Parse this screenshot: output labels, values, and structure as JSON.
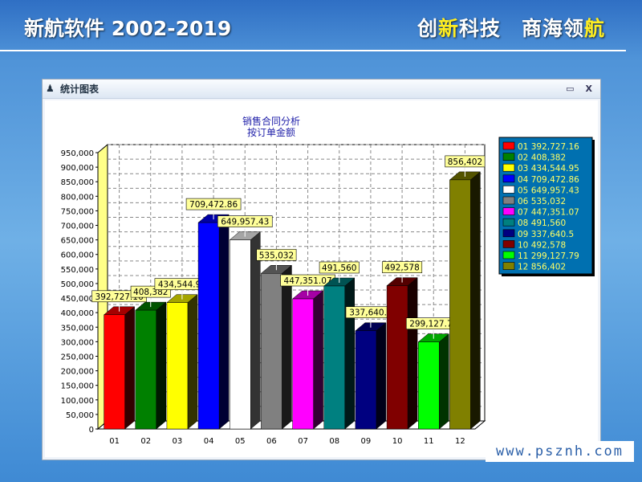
{
  "header": {
    "title": "新航软件 2002-2019",
    "slogan_parts": [
      "创",
      "新",
      "科技　商海领",
      "航"
    ]
  },
  "window": {
    "title": "统计图表",
    "minimize_label": "▭",
    "close_label": "X"
  },
  "footer": {
    "url": "www.psznh.com"
  },
  "colors": {
    "label_bg": "#ffff99",
    "legend_bg": "#0070b0",
    "legend_text": "#ffff66"
  },
  "chart_data": {
    "type": "bar",
    "style": "3d",
    "title": "销售合同分析",
    "subtitle": "按订单金额",
    "categories": [
      "01",
      "02",
      "03",
      "04",
      "05",
      "06",
      "07",
      "08",
      "09",
      "10",
      "11",
      "12"
    ],
    "values": [
      392727.16,
      408382,
      434544.95,
      709472.86,
      649957.43,
      535032,
      447351.07,
      491560,
      337640.5,
      492578,
      299127.79,
      856402
    ],
    "labels": [
      "392,727.16",
      "408,382",
      "434,544.95",
      "709,472.86",
      "649,957.43",
      "535,032",
      "447,351.07",
      "491,560",
      "337,640.5",
      "492,578",
      "299,127.79",
      "856,402"
    ],
    "colors": [
      "#ff0000",
      "#008000",
      "#ffff00",
      "#0000ff",
      "#ffffff",
      "#808080",
      "#ff00ff",
      "#008080",
      "#000080",
      "#800000",
      "#00ff00",
      "#808000"
    ],
    "legend": [
      "01 392,727.16",
      "02 408,382",
      "03 434,544.95",
      "04 709,472.86",
      "05 649,957.43",
      "06 535,032",
      "07 447,351.07",
      "08 491,560",
      "09 337,640.5",
      "10 492,578",
      "11 299,127.79",
      "12 856,402"
    ],
    "legend_position": "right",
    "ylim": [
      0,
      950000
    ],
    "ytick_step": 50000,
    "yticks": [
      "0",
      "50,000",
      "100,000",
      "150,000",
      "200,000",
      "250,000",
      "300,000",
      "350,000",
      "400,000",
      "450,000",
      "500,000",
      "550,000",
      "600,000",
      "650,000",
      "700,000",
      "750,000",
      "800,000",
      "850,000",
      "900,000",
      "950,000"
    ],
    "grid": true
  }
}
